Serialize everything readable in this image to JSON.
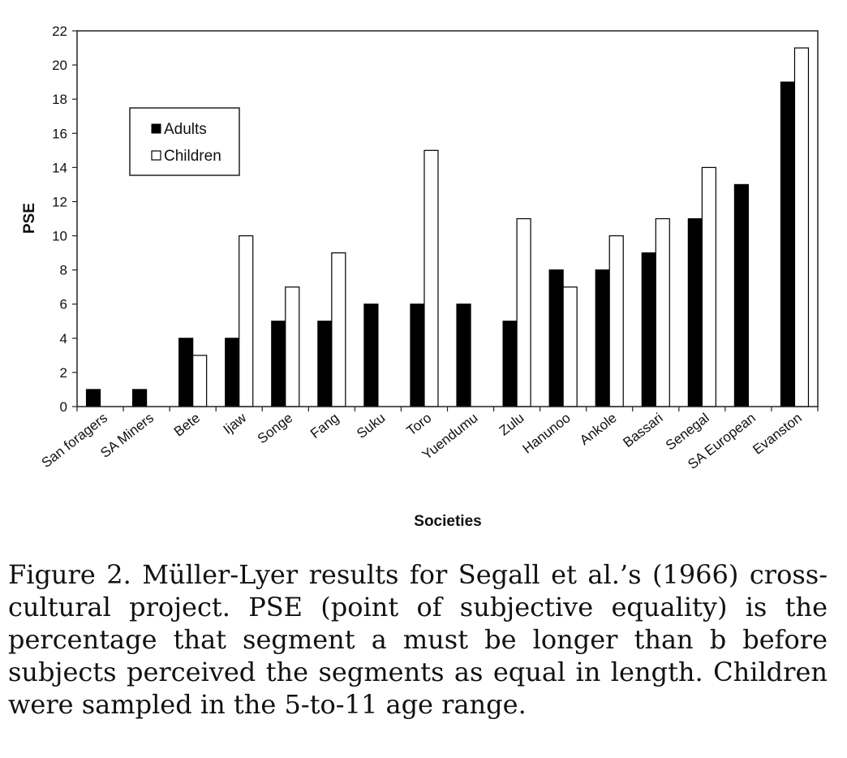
{
  "chart_data": {
    "type": "bar",
    "title": "",
    "xlabel": "Societies",
    "ylabel": "PSE",
    "ylim": [
      0,
      22
    ],
    "yticks": [
      0,
      2,
      4,
      6,
      8,
      10,
      12,
      14,
      16,
      18,
      20,
      22
    ],
    "grid": false,
    "legend_position": "top-left",
    "categories": [
      "San foragers",
      "SA Miners",
      "Bete",
      "Ijaw",
      "Songe",
      "Fang",
      "Suku",
      "Toro",
      "Yuendumu",
      "Zulu",
      "Hanunoo",
      "Ankole",
      "Bassari",
      "Senegal",
      "SA European",
      "Evanston"
    ],
    "series": [
      {
        "name": "Adults",
        "color": "#000000",
        "values": [
          1,
          1,
          4,
          4,
          5,
          5,
          6,
          6,
          6,
          5,
          8,
          8,
          9,
          11,
          13,
          19
        ]
      },
      {
        "name": "Children",
        "color": "#ffffff",
        "values": [
          null,
          null,
          3,
          10,
          7,
          9,
          null,
          15,
          null,
          11,
          7,
          10,
          11,
          14,
          null,
          21
        ]
      }
    ]
  },
  "caption": "Figure 2.   Müller-Lyer results for Segall et al.’s (1966) cross-cultural project. PSE (point of subjective equality) is the percentage that segment a must be longer than b before subjects perceived the segments as equal in length. Children were sampled in the 5-to-11 age range."
}
